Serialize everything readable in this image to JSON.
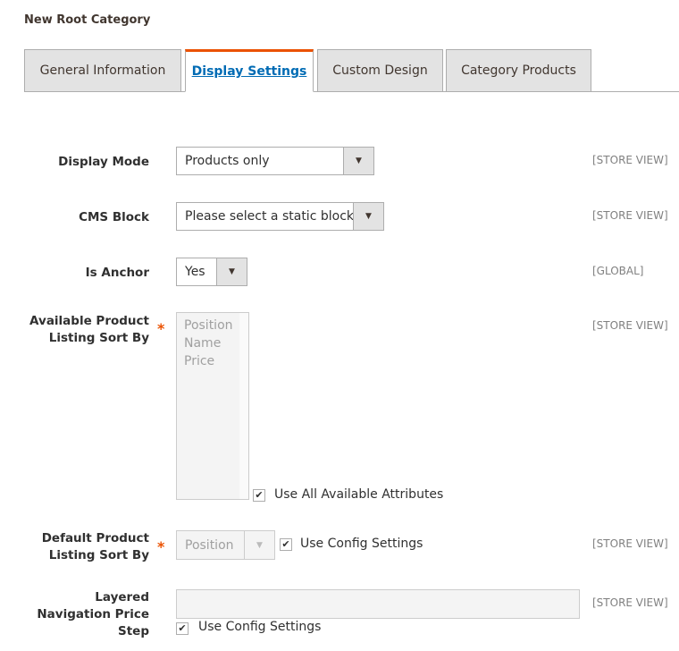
{
  "page_title": "New Root Category",
  "tabs": [
    {
      "label": "General Information"
    },
    {
      "label": "Display Settings",
      "active": true
    },
    {
      "label": "Custom Design"
    },
    {
      "label": "Category Products"
    }
  ],
  "accent_color": "#eb5202",
  "fields": {
    "display_mode": {
      "label": "Display Mode",
      "value": "Products only",
      "scope": "[STORE VIEW]"
    },
    "cms_block": {
      "label": "CMS Block",
      "value": "Please select a static block.",
      "scope": "[STORE VIEW]"
    },
    "is_anchor": {
      "label": "Is Anchor",
      "value": "Yes",
      "scope": "[GLOBAL]"
    },
    "available_sort": {
      "label_1": "Available Product",
      "label_2": "Listing Sort By",
      "required": "*",
      "options": [
        "Position",
        "Name",
        "Price"
      ],
      "checkbox_label": "Use All Available Attributes",
      "checked": true,
      "scope": "[STORE VIEW]"
    },
    "default_sort": {
      "label_1": "Default Product",
      "label_2": "Listing Sort By",
      "required": "*",
      "value": "Position",
      "checkbox_label": "Use Config Settings",
      "checked": true,
      "scope": "[STORE VIEW]"
    },
    "price_step": {
      "label_1": "Layered",
      "label_2": "Navigation Price",
      "label_3": "Step",
      "value": "",
      "checkbox_label": "Use Config Settings",
      "checked": true,
      "scope": "[STORE VIEW]"
    }
  },
  "icons": {
    "dropdown": "▼",
    "check": "✔"
  }
}
